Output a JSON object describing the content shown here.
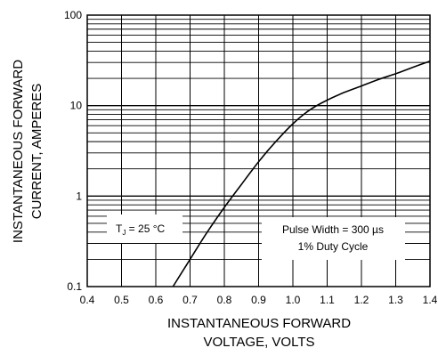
{
  "chart_data": {
    "type": "line",
    "title": "",
    "xlabel_lines": [
      "INSTANTANEOUS FORWARD",
      "VOLTAGE, VOLTS"
    ],
    "ylabel_lines": [
      "INSTANTANEOUS FORWARD",
      "CURRENT, AMPERES"
    ],
    "x_scale": "linear",
    "y_scale": "log",
    "xlim": [
      0.4,
      1.4
    ],
    "ylim": [
      0.1,
      100
    ],
    "x_ticks": [
      0.4,
      0.5,
      0.6,
      0.7,
      0.8,
      0.9,
      1.0,
      1.1,
      1.2,
      1.3,
      1.4
    ],
    "x_tick_labels": [
      "0.4",
      "0.5",
      "0.6",
      "0.7",
      "0.8",
      "0.9",
      "1.0",
      "1.1",
      "1.2",
      "1.3",
      "1.4"
    ],
    "y_ticks": [
      0.1,
      1,
      10,
      100
    ],
    "y_tick_labels": [
      "0.1",
      "1",
      "10",
      "100"
    ],
    "grid": true,
    "series": [
      {
        "x": [
          0.65,
          0.7,
          0.75,
          0.8,
          0.85,
          0.9,
          0.95,
          1.0,
          1.05,
          1.1,
          1.15,
          1.2,
          1.25,
          1.3,
          1.35,
          1.4
        ],
        "y": [
          0.1,
          0.2,
          0.4,
          0.75,
          1.35,
          2.4,
          4.0,
          6.3,
          9.0,
          11.5,
          14.0,
          16.5,
          19.5,
          22.5,
          26.5,
          31.0
        ]
      }
    ],
    "annotations": {
      "temp": {
        "prefix": "T",
        "sub": "J",
        "suffix": " = 25 °C"
      },
      "pulse": [
        "Pulse Width = 300 µs",
        "1% Duty Cycle"
      ]
    }
  }
}
